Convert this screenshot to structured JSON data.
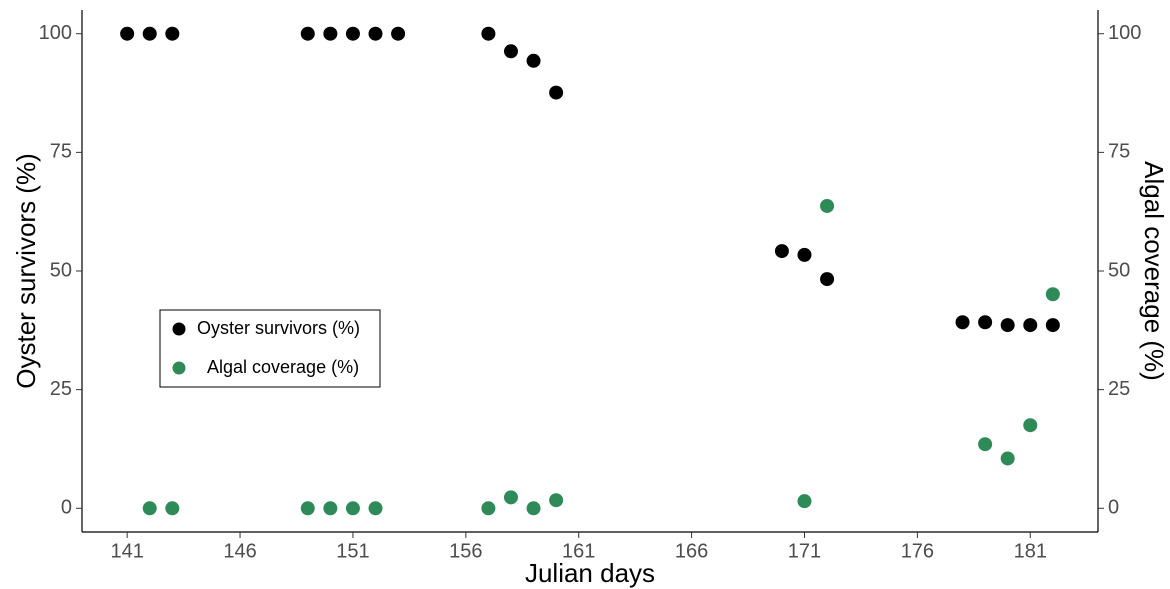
{
  "chart_data": {
    "type": "scatter",
    "x_label": "Julian days",
    "y_label": "Oyster survivors (%)",
    "y2_label": "Algal coverage (%)",
    "xlim": [
      139,
      184
    ],
    "xticks": [
      141,
      146,
      151,
      156,
      161,
      166,
      171,
      176,
      181
    ],
    "ylim": [
      -5,
      105
    ],
    "yticks": [
      0,
      25,
      50,
      75,
      100
    ],
    "y2lim": [
      -5,
      105
    ],
    "y2ticks": [
      0,
      25,
      50,
      75,
      100
    ],
    "grid": false,
    "legend": "left",
    "series": [
      {
        "name": "Oyster survivors (%)",
        "color": "#000000",
        "x": [
          141,
          142,
          143,
          149,
          150,
          151,
          152,
          153,
          157,
          158,
          159,
          160,
          170,
          171,
          172,
          178,
          179,
          180,
          181,
          182
        ],
        "values": [
          100,
          100,
          100,
          100,
          100,
          100,
          100,
          100,
          100,
          96.3,
          94.3,
          87.6,
          54.2,
          53.4,
          48.3,
          39.2,
          39.2,
          38.6,
          38.6,
          38.6
        ]
      },
      {
        "name": "Algal coverage (%)",
        "color": "#2e8b57",
        "axis": "y2",
        "x": [
          142,
          143,
          149,
          150,
          151,
          152,
          157,
          158,
          159,
          160,
          171,
          172,
          179,
          180,
          181,
          182
        ],
        "values": [
          0,
          0,
          0,
          0,
          0,
          0,
          0,
          2.3,
          0,
          1.7,
          1.5,
          63.7,
          13.5,
          10.5,
          17.5,
          45.1
        ]
      }
    ]
  }
}
